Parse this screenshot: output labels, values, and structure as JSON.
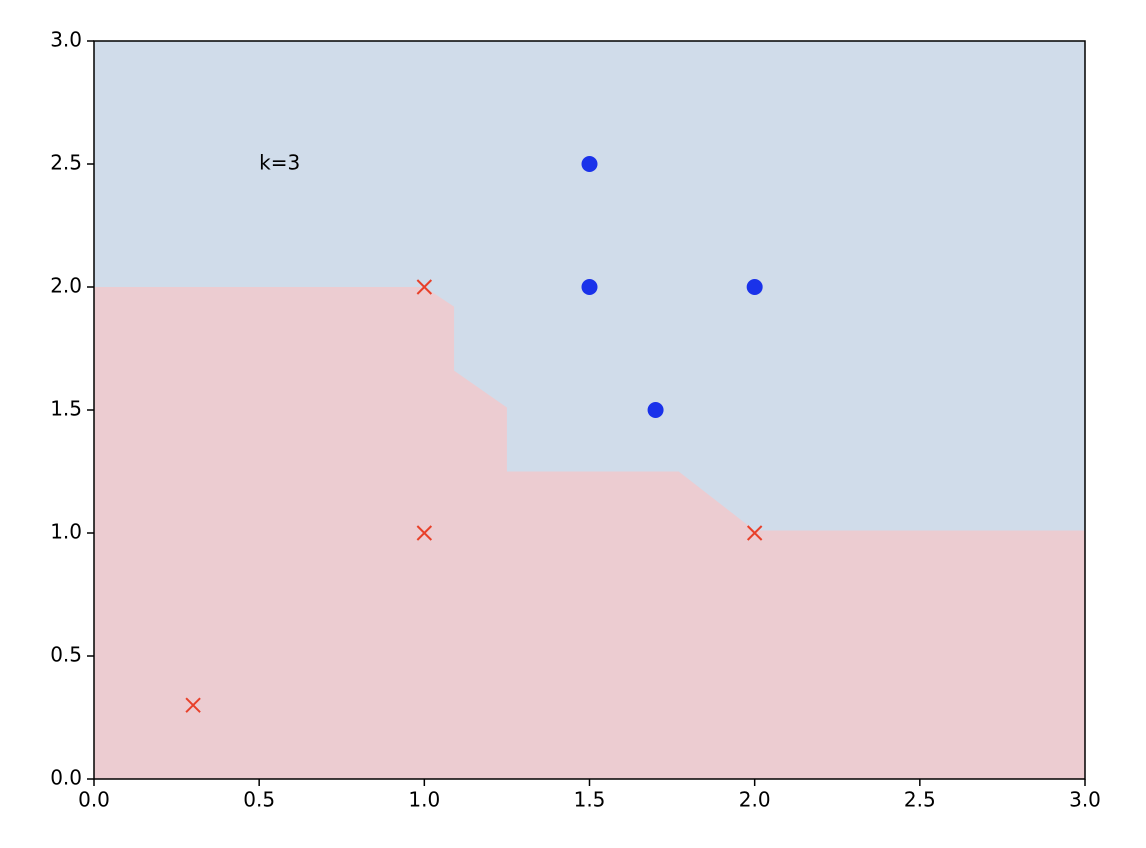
{
  "chart_data": {
    "type": "scatter",
    "annotation": {
      "text": "k=3",
      "x": 0.5,
      "y": 2.5
    },
    "boundary": {
      "x": [
        0,
        1,
        1.09,
        1.09,
        1.25,
        1.25,
        1.77,
        2,
        3
      ],
      "y": [
        2,
        2,
        1.92,
        1.66,
        1.51,
        1.25,
        1.25,
        1.01,
        1.01
      ],
      "color_below": "#ecccd1",
      "color_above": "#d0dcea"
    },
    "series": [
      {
        "marker": "x",
        "color": "#e8402a",
        "x": [
          0.3,
          1,
          1,
          2
        ],
        "values": [
          0.3,
          1,
          2,
          1
        ]
      },
      {
        "marker": "o",
        "color": "#1a32ea",
        "x": [
          1.5,
          1.5,
          2,
          1.7
        ],
        "values": [
          2.5,
          2,
          2,
          1.5
        ]
      }
    ],
    "xlim": [
      0,
      3
    ],
    "ylim": [
      0,
      3
    ],
    "xticks": [
      {
        "value": 0,
        "label": "0.0"
      },
      {
        "value": 0.5,
        "label": "0.5"
      },
      {
        "value": 1,
        "label": "1.0"
      },
      {
        "value": 1.5,
        "label": "1.5"
      },
      {
        "value": 2,
        "label": "2.0"
      },
      {
        "value": 2.5,
        "label": "2.5"
      },
      {
        "value": 3,
        "label": "3.0"
      }
    ],
    "yticks": [
      {
        "value": 0,
        "label": "0.0"
      },
      {
        "value": 0.5,
        "label": "0.5"
      },
      {
        "value": 1,
        "label": "1.0"
      },
      {
        "value": 1.5,
        "label": "1.5"
      },
      {
        "value": 2,
        "label": "2.0"
      },
      {
        "value": 2.5,
        "label": "2.5"
      },
      {
        "value": 3,
        "label": "3.0"
      }
    ]
  }
}
